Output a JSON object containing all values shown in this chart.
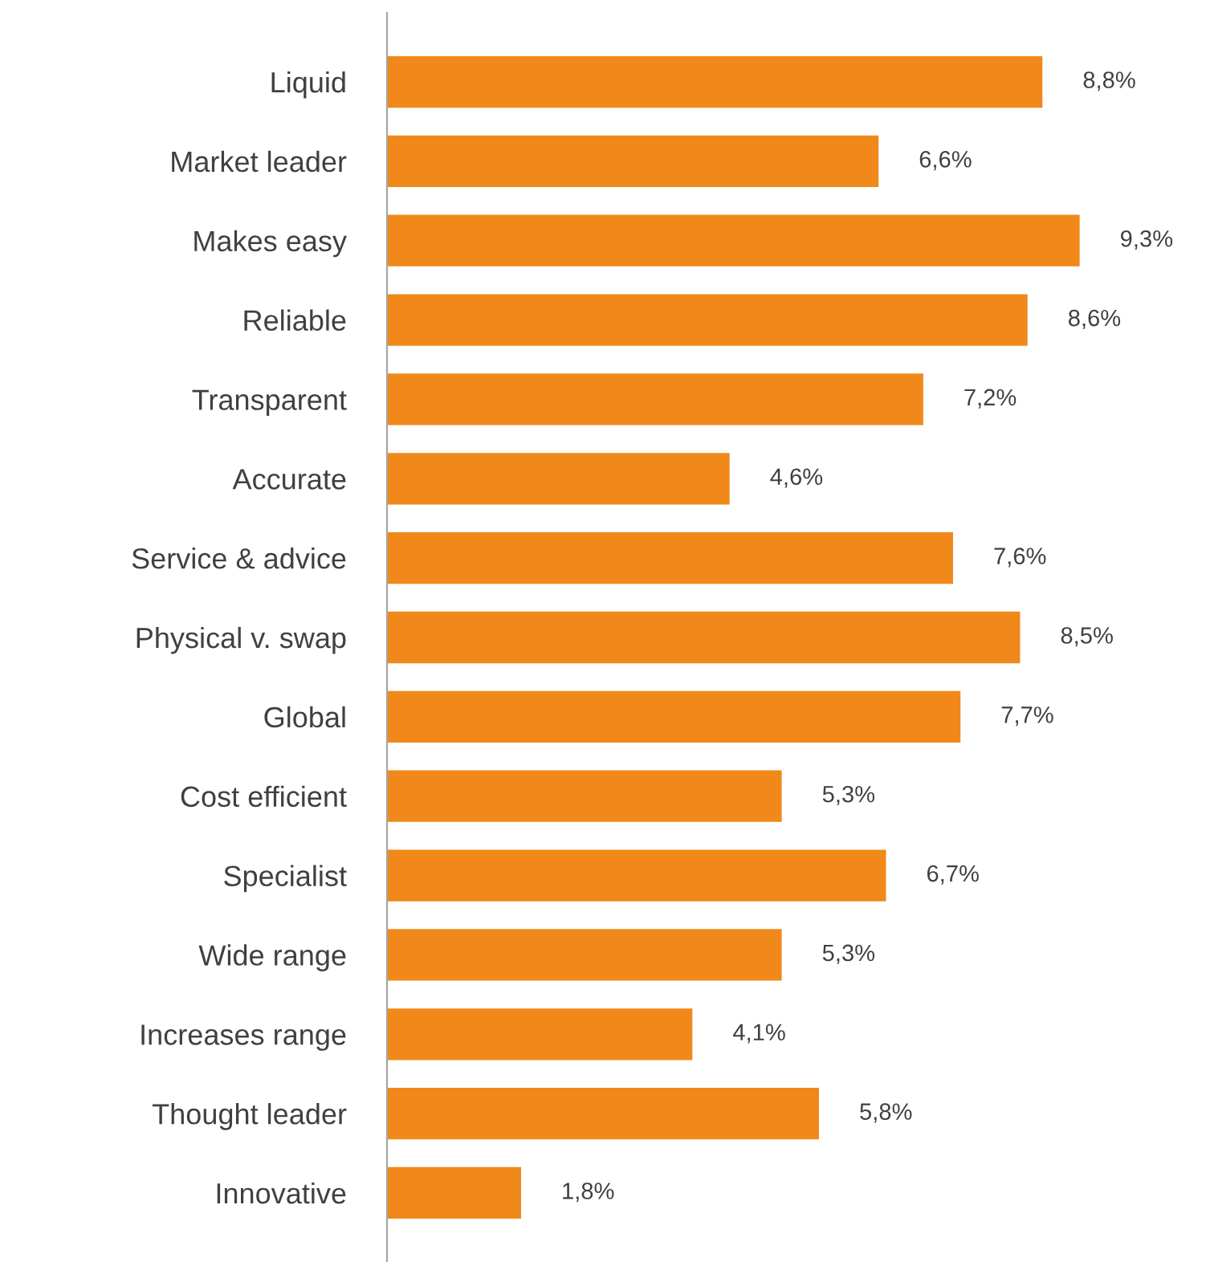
{
  "chart_data": {
    "type": "bar",
    "orientation": "horizontal",
    "categories": [
      "Liquid",
      "Market leader",
      "Makes easy",
      "Reliable",
      "Transparent",
      "Accurate",
      "Service & advice",
      "Physical v. swap",
      "Global",
      "Cost efficient",
      "Specialist",
      "Wide range",
      "Increases range",
      "Thought leader",
      "Innovative"
    ],
    "values": [
      8.8,
      6.6,
      9.3,
      8.6,
      7.2,
      4.6,
      7.6,
      8.5,
      7.7,
      5.3,
      6.7,
      5.3,
      4.1,
      5.8,
      1.8
    ],
    "value_labels": [
      "8,8%",
      "6,6%",
      "9,3%",
      "8,6%",
      "7,2%",
      "4,6%",
      "7,6%",
      "8,5%",
      "7,7%",
      "5,3%",
      "6,7%",
      "5,3%",
      "4,1%",
      "5,8%",
      "1,8%"
    ],
    "color": "#f0891a",
    "grid": false,
    "legend": false
  }
}
